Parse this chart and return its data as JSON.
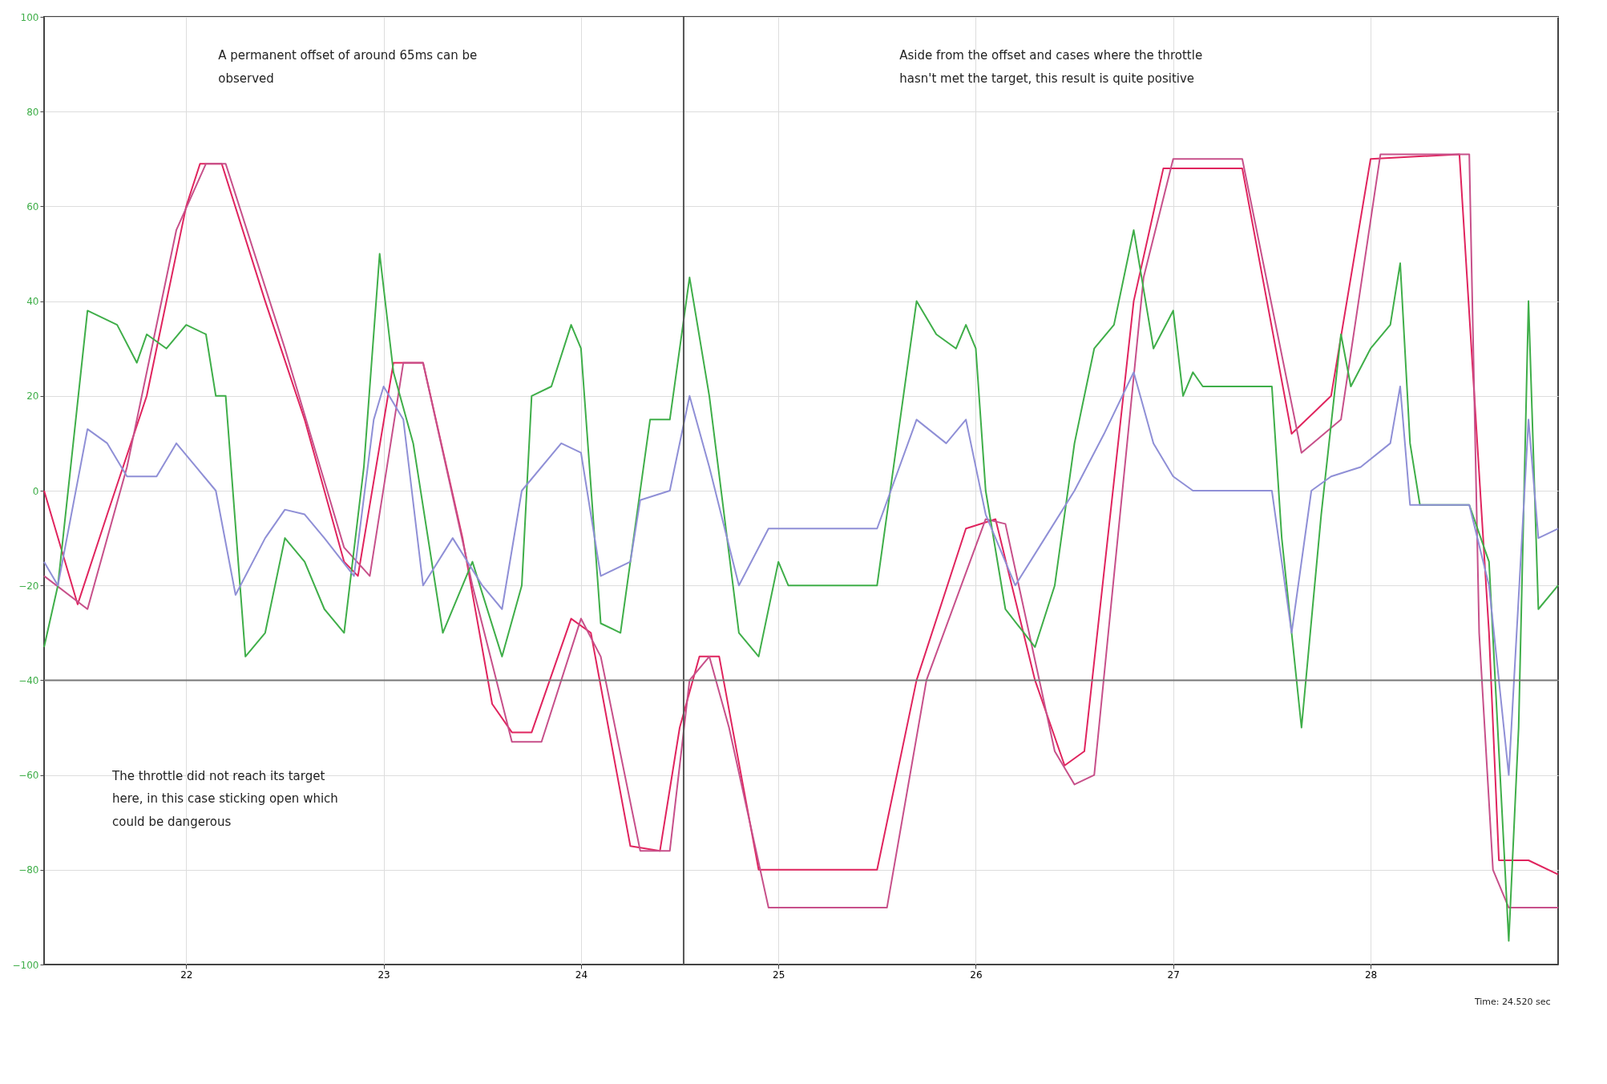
{
  "chart_data": {
    "type": "line",
    "xlim": [
      21.28,
      28.95
    ],
    "xticks": [
      22,
      23,
      24,
      25,
      26,
      27,
      28
    ],
    "ylim": [
      -100,
      100
    ],
    "yticks": [
      -100,
      -80,
      -60,
      -40,
      -20,
      0,
      20,
      40,
      60,
      80,
      100
    ],
    "grid": true,
    "marker": "none",
    "line_style": "solid",
    "annotations": [
      "A permanent offset of around 65ms can be\nobserved",
      "Aside from the offset and cases where the throttle\nhasn't met the target, this result is quite positive",
      "The throttle did not reach its target\nhere, in this case sticking open which\ncould be dangerous",
      "Time: 24.520 sec"
    ],
    "ref_lines": [
      {
        "axis": "x",
        "value": 24.52,
        "color": "#555555"
      },
      {
        "axis": "y",
        "value": -40,
        "color": "#777777"
      }
    ],
    "series": [
      {
        "color": "#e0245e",
        "x": [
          21.28,
          21.45,
          21.6,
          21.8,
          22.0,
          22.07,
          22.18,
          22.4,
          22.6,
          22.8,
          22.87,
          23.05,
          23.2,
          23.4,
          23.55,
          23.65,
          23.75,
          23.95,
          24.05,
          24.25,
          24.4,
          24.5,
          24.6,
          24.7,
          24.9,
          25.5,
          25.7,
          25.95,
          26.1,
          26.3,
          26.45,
          26.55,
          26.8,
          26.95,
          27.35,
          27.6,
          27.8,
          28.0,
          28.45,
          28.6,
          28.65,
          28.8,
          28.95
        ],
        "values": [
          0,
          -24,
          -5,
          20,
          60,
          69,
          69,
          40,
          15,
          -15,
          -18,
          27,
          27,
          -10,
          -45,
          -51,
          -51,
          -27,
          -30,
          -75,
          -76,
          -50,
          -35,
          -35,
          -80,
          -80,
          -40,
          -8,
          -6,
          -40,
          -58,
          -55,
          40,
          68,
          68,
          12,
          20,
          70,
          71,
          -30,
          -78,
          -78,
          -81
        ]
      },
      {
        "color": "#c7508a",
        "x": [
          21.28,
          21.5,
          21.7,
          21.95,
          22.1,
          22.2,
          22.5,
          22.8,
          22.93,
          23.1,
          23.2,
          23.45,
          23.65,
          23.8,
          24.0,
          24.1,
          24.3,
          24.45,
          24.55,
          24.65,
          24.75,
          24.95,
          25.55,
          25.75,
          26.05,
          26.15,
          26.4,
          26.5,
          26.6,
          26.85,
          27.0,
          27.35,
          27.65,
          27.85,
          28.05,
          28.5,
          28.55,
          28.62,
          28.7,
          28.95
        ],
        "values": [
          -18,
          -25,
          5,
          55,
          69,
          69,
          30,
          -12,
          -18,
          27,
          27,
          -20,
          -53,
          -53,
          -27,
          -35,
          -76,
          -76,
          -40,
          -35,
          -50,
          -88,
          -88,
          -40,
          -6,
          -7,
          -55,
          -62,
          -60,
          45,
          70,
          70,
          8,
          15,
          71,
          71,
          -30,
          -80,
          -88,
          -88
        ]
      },
      {
        "color": "#3fae49",
        "x": [
          21.28,
          21.35,
          21.5,
          21.65,
          21.75,
          21.8,
          21.9,
          22.0,
          22.1,
          22.15,
          22.2,
          22.3,
          22.4,
          22.5,
          22.6,
          22.7,
          22.8,
          22.9,
          22.98,
          23.05,
          23.15,
          23.3,
          23.45,
          23.6,
          23.7,
          23.75,
          23.85,
          23.95,
          24.0,
          24.1,
          24.2,
          24.35,
          24.45,
          24.55,
          24.65,
          24.8,
          24.9,
          25.0,
          25.05,
          25.5,
          25.6,
          25.7,
          25.8,
          25.9,
          25.95,
          26.0,
          26.05,
          26.15,
          26.3,
          26.4,
          26.5,
          26.6,
          26.7,
          26.8,
          26.9,
          27.0,
          27.05,
          27.1,
          27.15,
          27.5,
          27.55,
          27.65,
          27.75,
          27.85,
          27.9,
          28.0,
          28.1,
          28.15,
          28.2,
          28.25,
          28.5,
          28.6,
          28.7,
          28.75,
          28.8,
          28.85,
          28.95
        ],
        "values": [
          -33,
          -20,
          38,
          35,
          27,
          33,
          30,
          35,
          33,
          20,
          20,
          -35,
          -30,
          -10,
          -15,
          -25,
          -30,
          5,
          50,
          25,
          10,
          -30,
          -15,
          -35,
          -20,
          20,
          22,
          35,
          30,
          -28,
          -30,
          15,
          15,
          45,
          20,
          -30,
          -35,
          -15,
          -20,
          -20,
          10,
          40,
          33,
          30,
          35,
          30,
          0,
          -25,
          -33,
          -20,
          10,
          30,
          35,
          55,
          30,
          38,
          20,
          25,
          22,
          22,
          -10,
          -50,
          -5,
          33,
          22,
          30,
          35,
          48,
          10,
          -3,
          -3,
          -15,
          -95,
          -50,
          40,
          -25,
          -20
        ]
      },
      {
        "color": "#8f8fd6",
        "x": [
          21.28,
          21.35,
          21.5,
          21.6,
          21.7,
          21.85,
          21.95,
          22.05,
          22.15,
          22.25,
          22.4,
          22.5,
          22.6,
          22.7,
          22.85,
          22.95,
          23.0,
          23.1,
          23.2,
          23.35,
          23.5,
          23.6,
          23.7,
          23.9,
          24.0,
          24.1,
          24.25,
          24.3,
          24.45,
          24.55,
          24.65,
          24.8,
          24.95,
          25.5,
          25.7,
          25.85,
          25.95,
          26.05,
          26.2,
          26.35,
          26.5,
          26.65,
          26.8,
          26.9,
          27.0,
          27.1,
          27.5,
          27.6,
          27.7,
          27.8,
          27.95,
          28.1,
          28.15,
          28.2,
          28.5,
          28.6,
          28.7,
          28.8,
          28.85,
          28.95
        ],
        "values": [
          -15,
          -20,
          13,
          10,
          3,
          3,
          10,
          5,
          0,
          -22,
          -10,
          -4,
          -5,
          -10,
          -18,
          15,
          22,
          15,
          -20,
          -10,
          -20,
          -25,
          0,
          10,
          8,
          -18,
          -15,
          -2,
          0,
          20,
          5,
          -20,
          -8,
          -8,
          15,
          10,
          15,
          -5,
          -20,
          -10,
          0,
          12,
          25,
          10,
          3,
          0,
          0,
          -30,
          0,
          3,
          5,
          10,
          22,
          -3,
          -3,
          -20,
          -60,
          15,
          -10,
          -8
        ]
      }
    ]
  }
}
